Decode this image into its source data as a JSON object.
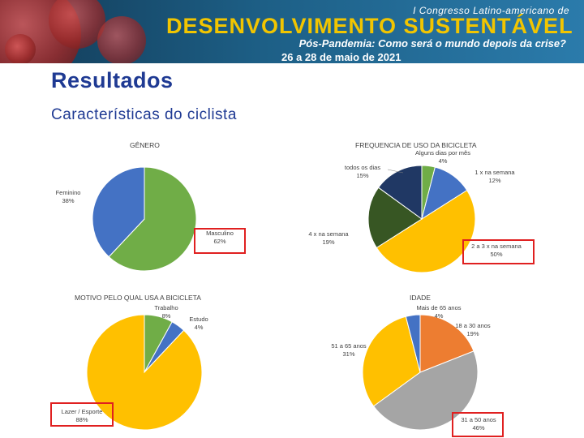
{
  "banner": {
    "line1": "I Congresso Latino-americano de",
    "line2": "DESENVOLVIMENTO SUSTENTÁVEL",
    "line3": "Pós-Pandemia: Como será o mundo depois da crise?",
    "line4": "26 a 28 de maio de 2021"
  },
  "page": {
    "title": "Resultados",
    "subtitle": "Características do ciclista"
  },
  "colors": {
    "green": "#70ad47",
    "blue": "#4472c4",
    "yellow": "#ffc000",
    "darkgreen": "#375623",
    "navy": "#203864",
    "orange": "#ed7d31",
    "gray": "#a5a5a5",
    "highlight": "#e02020",
    "title_blue": "#1f3a93"
  },
  "chart_data": [
    {
      "type": "pie",
      "title": "GÊNERO",
      "slices": [
        {
          "label": "Masculino",
          "value": 62,
          "percent": "62%",
          "color": "green",
          "highlight": true
        },
        {
          "label": "Feminino",
          "value": 38,
          "percent": "38%",
          "color": "blue",
          "highlight": false
        }
      ]
    },
    {
      "type": "pie",
      "title": "FREQUENCIA DE USO DA BICICLETA",
      "slices": [
        {
          "label": "Alguns dias por mês",
          "value": 4,
          "percent": "4%",
          "color": "green",
          "highlight": false
        },
        {
          "label": "1 x na semana",
          "value": 12,
          "percent": "12%",
          "color": "blue",
          "highlight": false
        },
        {
          "label": "2 a 3 x na semana",
          "value": 50,
          "percent": "50%",
          "color": "yellow",
          "highlight": true
        },
        {
          "label": "4 x na semana",
          "value": 19,
          "percent": "19%",
          "color": "darkgreen",
          "highlight": false
        },
        {
          "label": "todos os dias",
          "value": 15,
          "percent": "15%",
          "color": "navy",
          "highlight": false
        }
      ]
    },
    {
      "type": "pie",
      "title": "MOTIVO PELO QUAL USA A BICICLETA",
      "slices": [
        {
          "label": "Trabalho",
          "value": 8,
          "percent": "8%",
          "color": "green",
          "highlight": false
        },
        {
          "label": "Estudo",
          "value": 4,
          "percent": "4%",
          "color": "blue",
          "highlight": false
        },
        {
          "label": "Lazer / Esporte",
          "value": 88,
          "percent": "88%",
          "color": "yellow",
          "highlight": true
        }
      ]
    },
    {
      "type": "pie",
      "title": "IDADE",
      "slices": [
        {
          "label": "18 a 30 anos",
          "value": 19,
          "percent": "19%",
          "color": "orange",
          "highlight": false
        },
        {
          "label": "31 a 50 anos",
          "value": 46,
          "percent": "46%",
          "color": "gray",
          "highlight": true
        },
        {
          "label": "51 a 65 anos",
          "value": 31,
          "percent": "31%",
          "color": "yellow",
          "highlight": false
        },
        {
          "label": "Mais de 65 anos",
          "value": 4,
          "percent": "4%",
          "color": "blue",
          "highlight": false
        }
      ]
    }
  ]
}
